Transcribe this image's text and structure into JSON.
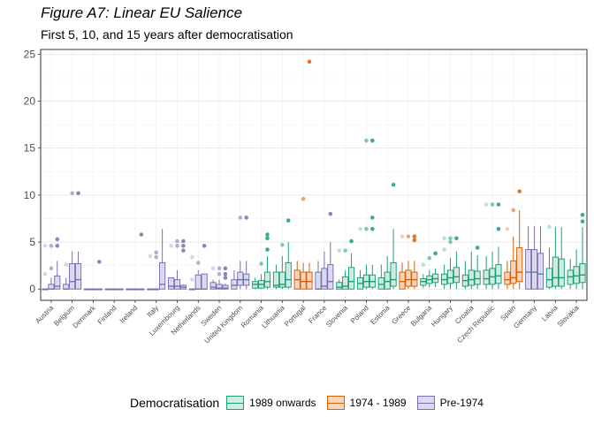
{
  "title": "Figure A7: Linear EU Salience",
  "subtitle": "First 5, 10, and 15 years after democratisation",
  "legend": {
    "title": "Democratisation",
    "items": [
      {
        "label": "1989 onwards",
        "color": "#1b9e77",
        "fill": "#d1ece3"
      },
      {
        "label": "1974 - 1989",
        "color": "#d95f02",
        "fill": "#f7d7c0"
      },
      {
        "label": "Pre-1974",
        "color": "#7570b3",
        "fill": "#dcdaed"
      }
    ]
  },
  "chart_data": {
    "type": "box",
    "ylim": [
      -1.2,
      25.5
    ],
    "yticks": [
      0,
      5,
      10,
      15,
      20,
      25
    ],
    "grid": true,
    "legend_position": "bottom",
    "windows": [
      "First 5 years",
      "First 10 years",
      "First 15 years"
    ],
    "groups": [
      "Pre-1974",
      "1989 onwards",
      "1974 - 1989"
    ],
    "countries": [
      {
        "name": "Austria",
        "group": "Pre-1974",
        "boxes": [
          {
            "q1": 0,
            "med": 0,
            "q3": 0,
            "lo": 0,
            "hi": 0,
            "out": [
              1.6,
              4.6
            ]
          },
          {
            "q1": 0,
            "med": 0,
            "q3": 0.5,
            "lo": 0,
            "hi": 1.2,
            "out": [
              2.2,
              4.6
            ]
          },
          {
            "q1": 0,
            "med": 0.3,
            "q3": 1.4,
            "lo": 0,
            "hi": 3.0,
            "out": [
              4.6,
              5.3
            ]
          }
        ]
      },
      {
        "name": "Belgium",
        "group": "Pre-1974",
        "boxes": [
          {
            "q1": 0,
            "med": 0,
            "q3": 0.5,
            "lo": 0,
            "hi": 1.2,
            "out": [
              2.6
            ]
          },
          {
            "q1": 0,
            "med": 0.8,
            "q3": 2.7,
            "lo": 0,
            "hi": 4.0,
            "out": [
              10.2
            ]
          },
          {
            "q1": 0,
            "med": 1.0,
            "q3": 2.7,
            "lo": 0,
            "hi": 4.0,
            "out": [
              10.2
            ]
          }
        ]
      },
      {
        "name": "Denmark",
        "group": "Pre-1974",
        "boxes": [
          {
            "q1": 0,
            "med": 0,
            "q3": 0,
            "lo": 0,
            "hi": 0,
            "out": []
          },
          {
            "q1": 0,
            "med": 0,
            "q3": 0,
            "lo": 0,
            "hi": 0,
            "out": []
          },
          {
            "q1": 0,
            "med": 0,
            "q3": 0,
            "lo": 0,
            "hi": 0,
            "out": [
              2.9
            ]
          }
        ]
      },
      {
        "name": "Finland",
        "group": "Pre-1974",
        "boxes": [
          {
            "q1": 0,
            "med": 0,
            "q3": 0,
            "lo": 0,
            "hi": 0,
            "out": []
          },
          {
            "q1": 0,
            "med": 0,
            "q3": 0,
            "lo": 0,
            "hi": 0,
            "out": []
          },
          {
            "q1": 0,
            "med": 0,
            "q3": 0,
            "lo": 0,
            "hi": 0,
            "out": []
          }
        ]
      },
      {
        "name": "Ireland",
        "group": "Pre-1974",
        "boxes": [
          {
            "q1": 0,
            "med": 0,
            "q3": 0,
            "lo": 0,
            "hi": 0,
            "out": []
          },
          {
            "q1": 0,
            "med": 0,
            "q3": 0,
            "lo": 0,
            "hi": 0,
            "out": []
          },
          {
            "q1": 0,
            "med": 0,
            "q3": 0,
            "lo": 0,
            "hi": 0,
            "out": [
              5.8
            ]
          }
        ]
      },
      {
        "name": "Italy",
        "group": "Pre-1974",
        "boxes": [
          {
            "q1": 0,
            "med": 0,
            "q3": 0,
            "lo": 0,
            "hi": 0,
            "out": [
              3.5
            ]
          },
          {
            "q1": 0,
            "med": 0,
            "q3": 0,
            "lo": 0,
            "hi": 0,
            "out": [
              3.4,
              3.9
            ]
          },
          {
            "q1": 0,
            "med": 0.5,
            "q3": 2.8,
            "lo": 0,
            "hi": 6.4,
            "out": []
          }
        ]
      },
      {
        "name": "Luxembourg",
        "group": "Pre-1974",
        "boxes": [
          {
            "q1": 0,
            "med": 0.3,
            "q3": 1.2,
            "lo": 0,
            "hi": 1.2,
            "out": [
              4.6
            ]
          },
          {
            "q1": 0,
            "med": 0.3,
            "q3": 1.0,
            "lo": 0,
            "hi": 2.0,
            "out": [
              4.6,
              5.1
            ]
          },
          {
            "q1": 0,
            "med": 0.2,
            "q3": 0.4,
            "lo": 0,
            "hi": 0.5,
            "out": [
              4.1,
              4.6,
              5.1
            ]
          }
        ]
      },
      {
        "name": "Netherlands",
        "group": "Pre-1974",
        "boxes": [
          {
            "q1": 0,
            "med": 0,
            "q3": 0,
            "lo": 0,
            "hi": 0,
            "out": [
              1.0,
              3.4
            ]
          },
          {
            "q1": 0,
            "med": 0,
            "q3": 1.5,
            "lo": 0,
            "hi": 2.0,
            "out": [
              2.8
            ]
          },
          {
            "q1": 0,
            "med": 0,
            "q3": 1.6,
            "lo": 0,
            "hi": 1.6,
            "out": [
              4.6
            ]
          }
        ]
      },
      {
        "name": "Sweden",
        "group": "Pre-1974",
        "boxes": [
          {
            "q1": 0,
            "med": 0.2,
            "q3": 0.7,
            "lo": 0,
            "hi": 1.0,
            "out": [
              2.2
            ]
          },
          {
            "q1": 0,
            "med": 0.1,
            "q3": 0.5,
            "lo": 0,
            "hi": 1.0,
            "out": [
              1.6,
              2.2
            ]
          },
          {
            "q1": 0,
            "med": 0.1,
            "q3": 0.4,
            "lo": 0,
            "hi": 0.6,
            "out": [
              1.2,
              1.6,
              2.2
            ]
          }
        ]
      },
      {
        "name": "United Kingdom",
        "group": "Pre-1974",
        "boxes": [
          {
            "q1": 0,
            "med": 0.4,
            "q3": 1.0,
            "lo": 0,
            "hi": 2.0,
            "out": []
          },
          {
            "q1": 0.4,
            "med": 1.0,
            "q3": 1.8,
            "lo": 0,
            "hi": 3.0,
            "out": [
              7.6
            ]
          },
          {
            "q1": 0.4,
            "med": 1.0,
            "q3": 1.6,
            "lo": 0,
            "hi": 3.0,
            "out": [
              7.6
            ]
          }
        ]
      },
      {
        "name": "Romania",
        "group": "1989 onwards",
        "boxes": [
          {
            "q1": 0.1,
            "med": 0.5,
            "q3": 0.8,
            "lo": 0,
            "hi": 1.2,
            "out": []
          },
          {
            "q1": 0.1,
            "med": 0.5,
            "q3": 0.9,
            "lo": 0,
            "hi": 1.6,
            "out": [
              2.7
            ]
          },
          {
            "q1": 0.2,
            "med": 0.8,
            "q3": 1.8,
            "lo": 0,
            "hi": 3.5,
            "out": [
              4.2,
              5.4,
              5.8
            ]
          }
        ]
      },
      {
        "name": "Lithuania",
        "group": "1989 onwards",
        "boxes": [
          {
            "q1": 0.2,
            "med": 0.4,
            "q3": 1.8,
            "lo": 0,
            "hi": 2.6,
            "out": []
          },
          {
            "q1": 0.2,
            "med": 0.5,
            "q3": 1.8,
            "lo": 0,
            "hi": 3.5,
            "out": [
              4.7
            ]
          },
          {
            "q1": 0.2,
            "med": 1.0,
            "q3": 2.8,
            "lo": 0,
            "hi": 5.0,
            "out": [
              7.3
            ]
          }
        ]
      },
      {
        "name": "Portugal",
        "group": "1974 - 1989",
        "boxes": [
          {
            "q1": 0,
            "med": 1.0,
            "q3": 2.0,
            "lo": 0,
            "hi": 3.0,
            "out": []
          },
          {
            "q1": 0,
            "med": 0.8,
            "q3": 1.8,
            "lo": 0,
            "hi": 2.8,
            "out": [
              9.6
            ]
          },
          {
            "q1": 0,
            "med": 0.8,
            "q3": 1.8,
            "lo": 0,
            "hi": 2.8,
            "out": [
              24.2
            ]
          }
        ]
      },
      {
        "name": "France",
        "group": "Pre-1974",
        "boxes": [
          {
            "q1": 0,
            "med": 0,
            "q3": 1.8,
            "lo": 0,
            "hi": 3.0,
            "out": []
          },
          {
            "q1": 0,
            "med": 0.3,
            "q3": 2.2,
            "lo": 0,
            "hi": 4.0,
            "out": []
          },
          {
            "q1": 0,
            "med": 0.8,
            "q3": 2.6,
            "lo": 0,
            "hi": 5.0,
            "out": [
              8.0
            ]
          }
        ]
      },
      {
        "name": "Slovenia",
        "group": "1989 onwards",
        "boxes": [
          {
            "q1": 0,
            "med": 0.2,
            "q3": 0.7,
            "lo": 0,
            "hi": 1.0,
            "out": [
              4.1
            ]
          },
          {
            "q1": 0,
            "med": 0.3,
            "q3": 1.3,
            "lo": 0,
            "hi": 2.0,
            "out": [
              4.1
            ]
          },
          {
            "q1": 0,
            "med": 0.8,
            "q3": 2.3,
            "lo": 0,
            "hi": 3.8,
            "out": [
              5.1
            ]
          }
        ]
      },
      {
        "name": "Poland",
        "group": "1989 onwards",
        "boxes": [
          {
            "q1": 0,
            "med": 0.6,
            "q3": 1.2,
            "lo": 0,
            "hi": 2.0,
            "out": [
              6.4
            ]
          },
          {
            "q1": 0.2,
            "med": 0.8,
            "q3": 1.5,
            "lo": 0,
            "hi": 2.6,
            "out": [
              6.4,
              15.8
            ]
          },
          {
            "q1": 0.2,
            "med": 0.8,
            "q3": 1.5,
            "lo": 0,
            "hi": 2.6,
            "out": [
              6.4,
              7.6,
              15.8
            ]
          }
        ]
      },
      {
        "name": "Estonia",
        "group": "1989 onwards",
        "boxes": [
          {
            "q1": 0,
            "med": 0.5,
            "q3": 1.2,
            "lo": 0,
            "hi": 2.6,
            "out": []
          },
          {
            "q1": 0,
            "med": 0.8,
            "q3": 1.8,
            "lo": 0,
            "hi": 3.5,
            "out": []
          },
          {
            "q1": 0.3,
            "med": 1.0,
            "q3": 2.8,
            "lo": 0,
            "hi": 6.4,
            "out": [
              11.1
            ]
          }
        ]
      },
      {
        "name": "Greece",
        "group": "1974 - 1989",
        "boxes": [
          {
            "q1": 0,
            "med": 0.8,
            "q3": 1.8,
            "lo": 0,
            "hi": 2.8,
            "out": [
              5.6
            ]
          },
          {
            "q1": 0.3,
            "med": 1.0,
            "q3": 2.0,
            "lo": 0,
            "hi": 3.0,
            "out": [
              5.6
            ]
          },
          {
            "q1": 0.3,
            "med": 1.0,
            "q3": 1.8,
            "lo": 0,
            "hi": 3.0,
            "out": [
              5.2,
              5.6
            ]
          }
        ]
      },
      {
        "name": "Bulgaria",
        "group": "1989 onwards",
        "boxes": [
          {
            "q1": 0.4,
            "med": 0.8,
            "q3": 1.1,
            "lo": 0.1,
            "hi": 1.6,
            "out": [
              2.6
            ]
          },
          {
            "q1": 0.6,
            "med": 1.0,
            "q3": 1.4,
            "lo": 0.2,
            "hi": 2.0,
            "out": [
              3.3
            ]
          },
          {
            "q1": 0.7,
            "med": 1.1,
            "q3": 1.6,
            "lo": 0.2,
            "hi": 2.2,
            "out": [
              3.8
            ]
          }
        ]
      },
      {
        "name": "Hungary",
        "group": "1989 onwards",
        "boxes": [
          {
            "q1": 0.5,
            "med": 1.0,
            "q3": 1.6,
            "lo": 0,
            "hi": 2.6,
            "out": [
              4.2,
              5.4
            ]
          },
          {
            "q1": 0.6,
            "med": 1.2,
            "q3": 2.0,
            "lo": 0,
            "hi": 3.3,
            "out": [
              5.0,
              5.4
            ]
          },
          {
            "q1": 0.7,
            "med": 1.3,
            "q3": 2.3,
            "lo": 0,
            "hi": 4.0,
            "out": [
              5.4
            ]
          }
        ]
      },
      {
        "name": "Croatia",
        "group": "1989 onwards",
        "boxes": [
          {
            "q1": 0.3,
            "med": 0.9,
            "q3": 1.5,
            "lo": 0,
            "hi": 3.0,
            "out": []
          },
          {
            "q1": 0.4,
            "med": 1.0,
            "q3": 2.0,
            "lo": 0,
            "hi": 4.0,
            "out": []
          },
          {
            "q1": 0.5,
            "med": 1.1,
            "q3": 1.9,
            "lo": 0,
            "hi": 3.6,
            "out": [
              4.4
            ]
          }
        ]
      },
      {
        "name": "Czech Republic",
        "group": "1989 onwards",
        "boxes": [
          {
            "q1": 0.5,
            "med": 1.1,
            "q3": 2.0,
            "lo": 0,
            "hi": 3.5,
            "out": [
              9.0
            ]
          },
          {
            "q1": 0.5,
            "med": 1.3,
            "q3": 2.2,
            "lo": 0,
            "hi": 4.0,
            "out": [
              9.0
            ]
          },
          {
            "q1": 0.6,
            "med": 1.4,
            "q3": 2.6,
            "lo": 0,
            "hi": 4.5,
            "out": [
              6.4,
              9.0
            ]
          }
        ]
      },
      {
        "name": "Spain",
        "group": "1974 - 1989",
        "boxes": [
          {
            "q1": 0.5,
            "med": 1.0,
            "q3": 1.8,
            "lo": 0,
            "hi": 3.0,
            "out": [
              6.4
            ]
          },
          {
            "q1": 0.6,
            "med": 1.2,
            "q3": 3.0,
            "lo": 0,
            "hi": 5.6,
            "out": [
              8.4
            ]
          },
          {
            "q1": 0.8,
            "med": 1.8,
            "q3": 4.4,
            "lo": 0,
            "hi": 8.4,
            "out": [
              10.4
            ]
          }
        ]
      },
      {
        "name": "Germany",
        "group": "Pre-1974",
        "boxes": [
          {
            "q1": 0,
            "med": 1.8,
            "q3": 4.2,
            "lo": 0,
            "hi": 6.7,
            "out": []
          },
          {
            "q1": 0,
            "med": 1.8,
            "q3": 4.2,
            "lo": 0,
            "hi": 6.7,
            "out": []
          },
          {
            "q1": 0,
            "med": 1.6,
            "q3": 3.8,
            "lo": 0,
            "hi": 6.7,
            "out": []
          }
        ]
      },
      {
        "name": "Latvia",
        "group": "1989 onwards",
        "boxes": [
          {
            "q1": 0.2,
            "med": 1.0,
            "q3": 2.2,
            "lo": 0,
            "hi": 4.4,
            "out": [
              6.6
            ]
          },
          {
            "q1": 0.3,
            "med": 1.2,
            "q3": 3.4,
            "lo": 0,
            "hi": 6.6,
            "out": []
          },
          {
            "q1": 0.3,
            "med": 1.2,
            "q3": 3.2,
            "lo": 0,
            "hi": 6.6,
            "out": []
          }
        ]
      },
      {
        "name": "Slovakia",
        "group": "1989 onwards",
        "boxes": [
          {
            "q1": 0.5,
            "med": 1.3,
            "q3": 2.0,
            "lo": 0,
            "hi": 3.2,
            "out": []
          },
          {
            "q1": 0.6,
            "med": 1.4,
            "q3": 2.4,
            "lo": 0,
            "hi": 4.2,
            "out": []
          },
          {
            "q1": 0.7,
            "med": 1.5,
            "q3": 2.7,
            "lo": 0,
            "hi": 6.6,
            "out": [
              7.2,
              7.9
            ]
          }
        ]
      }
    ]
  }
}
